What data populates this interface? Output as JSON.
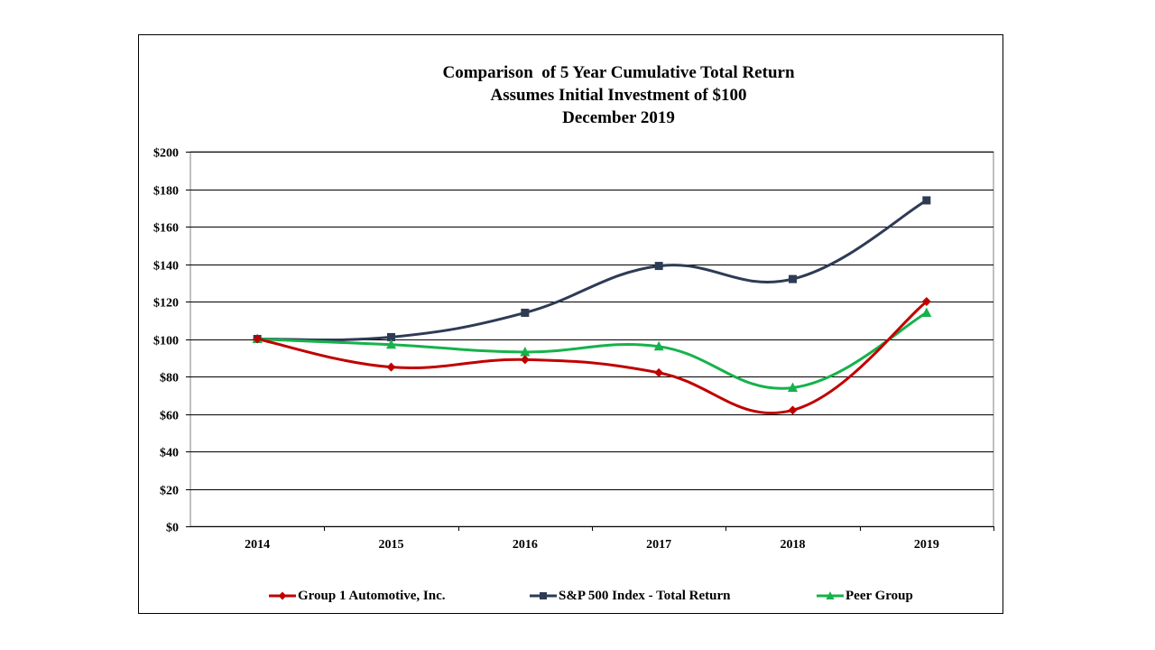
{
  "chart_data": {
    "type": "line",
    "title": [
      "Comparison  of 5 Year Cumulative Total Return",
      "Assumes Initial Investment of $100",
      "December 2019"
    ],
    "categories": [
      "2014",
      "2015",
      "2016",
      "2017",
      "2018",
      "2019"
    ],
    "y_tick_labels": [
      "$0",
      "$20",
      "$40",
      "$60",
      "$80",
      "$100",
      "$120",
      "$140",
      "$160",
      "$180",
      "$200"
    ],
    "ylim": [
      0,
      200
    ],
    "y_step": 20,
    "grid": true,
    "legend_position": "bottom",
    "series": [
      {
        "name": "Group 1 Automotive, Inc.",
        "marker": "diamond",
        "color": "#c00000",
        "values": [
          100,
          85,
          89,
          82,
          62,
          120
        ]
      },
      {
        "name": "S&P 500 Index - Total Return",
        "marker": "square",
        "color": "#2e3b55",
        "values": [
          100,
          101,
          114,
          139,
          132,
          174
        ]
      },
      {
        "name": "Peer Group",
        "marker": "triangle",
        "color": "#16b24b",
        "values": [
          100,
          97,
          93,
          96,
          74,
          114
        ]
      }
    ]
  }
}
